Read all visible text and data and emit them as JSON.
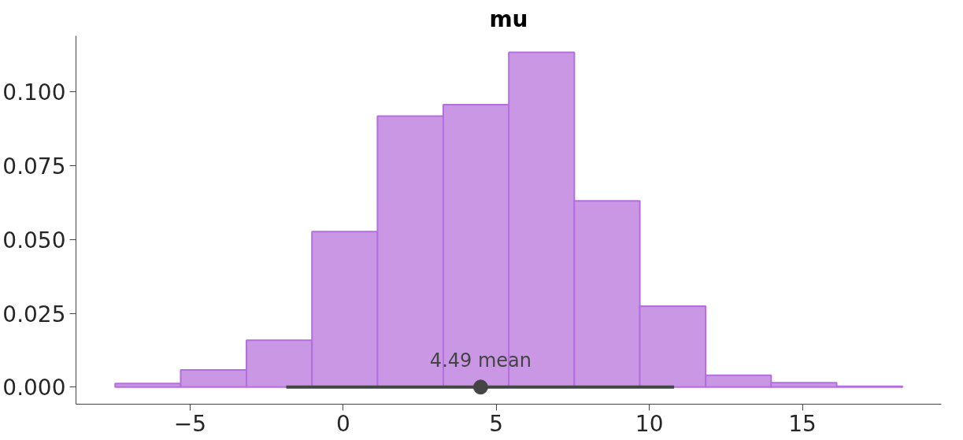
{
  "chart_data": {
    "type": "histogram",
    "title": "mu",
    "color": "#c997e3",
    "bins": [
      -7.45,
      -5.31,
      -3.16,
      -1.02,
      1.12,
      3.27,
      5.41,
      7.55,
      9.69,
      11.84,
      13.98,
      16.12,
      18.27
    ],
    "values": [
      0.0012,
      0.0058,
      0.0159,
      0.0527,
      0.0918,
      0.0957,
      0.1134,
      0.0631,
      0.0274,
      0.004,
      0.0015,
      0.0003
    ],
    "series": [
      {
        "type": "line",
        "color": "#444444",
        "x": [
          -1.86,
          10.81
        ],
        "values": [
          0,
          0
        ]
      },
      {
        "type": "scatter",
        "color": "#444444",
        "x": [
          4.49
        ],
        "values": [
          0
        ],
        "marker": "circle"
      }
    ],
    "annotations": [
      {
        "text": "4.49 mean",
        "x": 4.49,
        "y": 0
      }
    ],
    "xlim": [
      -8.73,
      19.54
    ],
    "ylim": [
      -0.0058,
      0.119
    ],
    "xticks": [
      {
        "value": -5,
        "label": "−5"
      },
      0,
      5,
      10,
      15
    ],
    "yticks": [
      {
        "value": 0,
        "label": "0.000"
      },
      {
        "value": 0.025,
        "label": "0.025"
      },
      {
        "value": 0.05,
        "label": "0.050"
      },
      {
        "value": 0.075,
        "label": "0.075"
      },
      {
        "value": 0.1,
        "label": "0.100"
      }
    ],
    "grid": false
  }
}
